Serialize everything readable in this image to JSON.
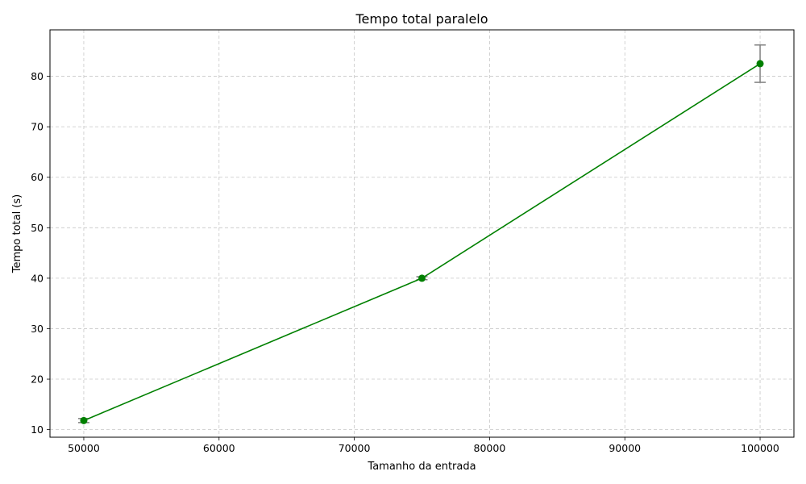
{
  "chart_data": {
    "type": "line",
    "title": "Tempo total paralelo",
    "xlabel": "Tamanho da entrada",
    "ylabel": "Tempo total (s)",
    "xlim": [
      47500,
      102500
    ],
    "ylim": [
      8.5,
      89.2
    ],
    "xticks": [
      50000,
      60000,
      70000,
      80000,
      90000,
      100000
    ],
    "yticks": [
      10,
      20,
      30,
      40,
      50,
      60,
      70,
      80
    ],
    "grid": true,
    "series": [
      {
        "color": "#008000",
        "errorbar_color": "#808080",
        "points": [
          {
            "x": 50000,
            "y": 11.8,
            "err": 0.4
          },
          {
            "x": 75000,
            "y": 40.0,
            "err": 0.3
          },
          {
            "x": 100000,
            "y": 82.5,
            "err": 3.7
          }
        ]
      }
    ]
  }
}
